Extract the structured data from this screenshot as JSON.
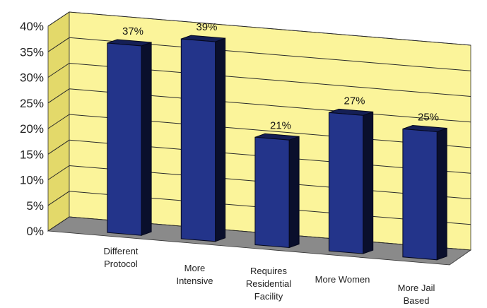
{
  "chart_data": {
    "type": "bar",
    "categories": [
      [
        "Different",
        "Protocol"
      ],
      [
        "More",
        "Intensive"
      ],
      [
        "Requires",
        "Residential",
        "Facility"
      ],
      [
        "More Women"
      ],
      [
        "More Jail",
        "Based"
      ]
    ],
    "values": [
      37,
      39,
      21,
      27,
      25
    ],
    "data_labels": [
      "37%",
      "39%",
      "21%",
      "27%",
      "25%"
    ],
    "y_ticks": [
      "0%",
      "5%",
      "10%",
      "15%",
      "20%",
      "25%",
      "30%",
      "35%",
      "40%"
    ],
    "ylim": [
      0,
      40
    ],
    "grid": true,
    "style": "3d",
    "colors": {
      "bar_front": "#23348a",
      "bar_side": "#0a0f2c",
      "bar_top": "#151f55",
      "bar_outline": "#05081c",
      "back_wall": "#fbf49a",
      "side_wall": "#e3d96a",
      "floor": "#8a8a8a",
      "gridline": "#2b2b2b"
    }
  }
}
